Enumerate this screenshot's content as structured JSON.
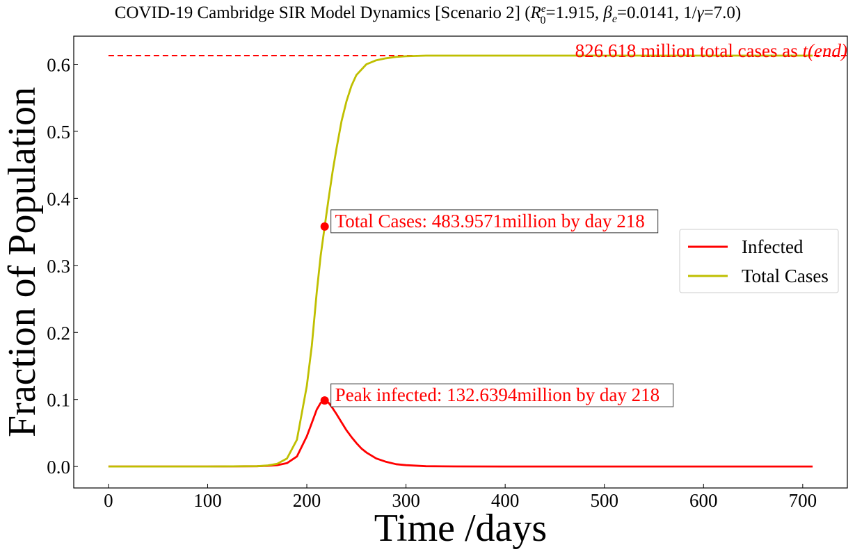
{
  "chart_data": {
    "type": "line",
    "title": {
      "prefix": "COVID-19 Cambridge SIR Model Dynamics [Scenario 2] (",
      "r0_symbol": "R",
      "r0_sup": "e",
      "r0_sub": "0",
      "r0_value": "=1.915, ",
      "beta_symbol": "β",
      "beta_sub": "e",
      "beta_value": "=0.0141, 1/",
      "gamma_symbol": "γ",
      "gamma_value": "=7.0)"
    },
    "xlabel": "Time /days",
    "ylabel": "Fraction of Population",
    "xlim": [
      -35,
      745
    ],
    "ylim": [
      -0.032,
      0.642
    ],
    "xticks": [
      0,
      100,
      200,
      300,
      400,
      500,
      600,
      700
    ],
    "xtick_labels": [
      "0",
      "100",
      "200",
      "300",
      "400",
      "500",
      "600",
      "700"
    ],
    "yticks": [
      0.0,
      0.1,
      0.2,
      0.3,
      0.4,
      0.5,
      0.6
    ],
    "ytick_labels": [
      "0.0",
      "0.1",
      "0.2",
      "0.3",
      "0.4",
      "0.5",
      "0.6"
    ],
    "grid": false,
    "legend_position": "center-right",
    "series": [
      {
        "name": "Infected",
        "color": "#ff0000",
        "x": [
          0,
          100,
          150,
          160,
          170,
          180,
          190,
          200,
          205,
          210,
          214,
          218,
          222,
          226,
          230,
          235,
          240,
          245,
          250,
          255,
          260,
          270,
          280,
          290,
          300,
          320,
          350,
          400,
          500,
          600,
          710
        ],
        "y": [
          0.0,
          0.0,
          0.0005,
          0.001,
          0.002,
          0.005,
          0.015,
          0.045,
          0.065,
          0.085,
          0.095,
          0.0985,
          0.095,
          0.087,
          0.078,
          0.066,
          0.054,
          0.044,
          0.035,
          0.027,
          0.021,
          0.012,
          0.007,
          0.0035,
          0.002,
          0.0005,
          0.0001,
          0.0,
          0.0,
          0.0,
          0.0
        ]
      },
      {
        "name": "Total Cases",
        "color": "#bfbf00",
        "x": [
          0,
          100,
          150,
          160,
          170,
          180,
          190,
          200,
          205,
          210,
          214,
          218,
          222,
          226,
          230,
          235,
          240,
          245,
          250,
          260,
          270,
          280,
          290,
          300,
          320,
          350,
          400,
          500,
          600,
          710
        ],
        "y": [
          0.0,
          0.0,
          0.0005,
          0.0015,
          0.004,
          0.012,
          0.04,
          0.12,
          0.18,
          0.26,
          0.315,
          0.358,
          0.4,
          0.44,
          0.475,
          0.515,
          0.545,
          0.568,
          0.584,
          0.6,
          0.606,
          0.609,
          0.611,
          0.612,
          0.613,
          0.613,
          0.613,
          0.613,
          0.613,
          0.613
        ]
      }
    ],
    "reference_line": {
      "y": 0.613,
      "x_start": 0,
      "x_end": 745,
      "color": "#ff0000",
      "style": "dashed",
      "label_text": "826.618 million total cases as ",
      "label_math": "t(end)"
    },
    "annotations": [
      {
        "x": 218,
        "y": 0.358,
        "color": "#ff0000",
        "text": "Total Cases: 483.9571million by day 218"
      },
      {
        "x": 218,
        "y": 0.0985,
        "color": "#ff0000",
        "text": "Peak infected: 132.6394million by day 218"
      }
    ]
  }
}
